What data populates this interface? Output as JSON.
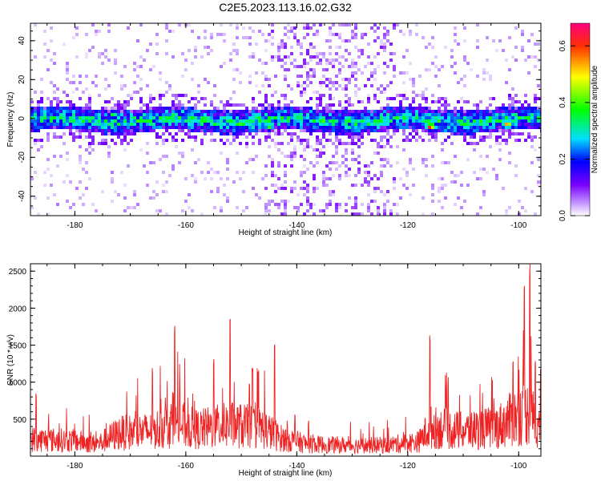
{
  "title": "C2E5.2023.113.16.02.G32",
  "chart_data": [
    {
      "type": "heatmap",
      "xlabel": "Height of straight line (km)",
      "ylabel": "Frequency (Hz)",
      "xlim": [
        -188,
        -96
      ],
      "ylim": [
        -50,
        49
      ],
      "x_ticks": [
        -180,
        -160,
        -140,
        -120,
        -100
      ],
      "y_ticks": [
        -40,
        -20,
        0,
        20,
        40
      ],
      "colorbar": {
        "label": "Normalized spectral amplitude",
        "range": [
          0,
          0.68
        ],
        "ticks": [
          0.0,
          0.2,
          0.4,
          0.6
        ],
        "colors": [
          "#ffffff",
          "#c8a0ff",
          "#7a00ff",
          "#0000ff",
          "#00e0ff",
          "#00ff00",
          "#ffff00",
          "#ff0000",
          "#ff0080"
        ]
      },
      "description_bands": [
        {
          "x_range": [
            -188,
            -96
          ],
          "y_center": 0,
          "y_halfwidth": 6,
          "level": 0.25
        },
        {
          "x_range": [
            -146,
            -122
          ],
          "y_range": [
            -50,
            49
          ],
          "level": 0.05
        }
      ],
      "hotspots": [
        {
          "x": -173,
          "y": 2,
          "v": 0.4
        },
        {
          "x": -163,
          "y": 0,
          "v": 0.45
        },
        {
          "x": -150,
          "y": -3,
          "v": 0.45
        },
        {
          "x": -145,
          "y": -4,
          "v": 0.5
        },
        {
          "x": -116,
          "y": -4,
          "v": 0.68
        },
        {
          "x": -111,
          "y": -2,
          "v": 0.4
        },
        {
          "x": -105,
          "y": 0,
          "v": 0.45
        },
        {
          "x": -102,
          "y": -3,
          "v": 0.6
        },
        {
          "x": -98,
          "y": 0,
          "v": 0.45
        }
      ]
    },
    {
      "type": "line",
      "xlabel": "Height of straight line (km)",
      "ylabel": "SNR (10 * v/v)",
      "xlim": [
        -188,
        -96
      ],
      "ylim": [
        0,
        2600
      ],
      "x_ticks": [
        -180,
        -160,
        -140,
        -120,
        -100
      ],
      "y_ticks": [
        500,
        1000,
        1500,
        2000,
        2500
      ],
      "color": "#ee2222",
      "envelope": [
        {
          "x": -188,
          "y": 350
        },
        {
          "x": -180,
          "y": 320
        },
        {
          "x": -176,
          "y": 250
        },
        {
          "x": -172,
          "y": 480
        },
        {
          "x": -166,
          "y": 520
        },
        {
          "x": -162,
          "y": 700
        },
        {
          "x": -158,
          "y": 550
        },
        {
          "x": -152,
          "y": 650
        },
        {
          "x": -146,
          "y": 580
        },
        {
          "x": -143,
          "y": 380
        },
        {
          "x": -138,
          "y": 250
        },
        {
          "x": -130,
          "y": 220
        },
        {
          "x": -124,
          "y": 230
        },
        {
          "x": -118,
          "y": 300
        },
        {
          "x": -116,
          "y": 600
        },
        {
          "x": -110,
          "y": 520
        },
        {
          "x": -104,
          "y": 600
        },
        {
          "x": -100,
          "y": 850
        },
        {
          "x": -98,
          "y": 900
        },
        {
          "x": -96,
          "y": 550
        }
      ],
      "peaks": [
        {
          "x": -162,
          "y": 1780
        },
        {
          "x": -166,
          "y": 1220
        },
        {
          "x": -155,
          "y": 1350
        },
        {
          "x": -152,
          "y": 1870
        },
        {
          "x": -148,
          "y": 1200
        },
        {
          "x": -144,
          "y": 1580
        },
        {
          "x": -116,
          "y": 1660
        },
        {
          "x": -101,
          "y": 1350
        },
        {
          "x": -98,
          "y": 2600
        },
        {
          "x": -99,
          "y": 2300
        },
        {
          "x": -97,
          "y": 1300
        },
        {
          "x": -187,
          "y": 880
        }
      ]
    }
  ]
}
